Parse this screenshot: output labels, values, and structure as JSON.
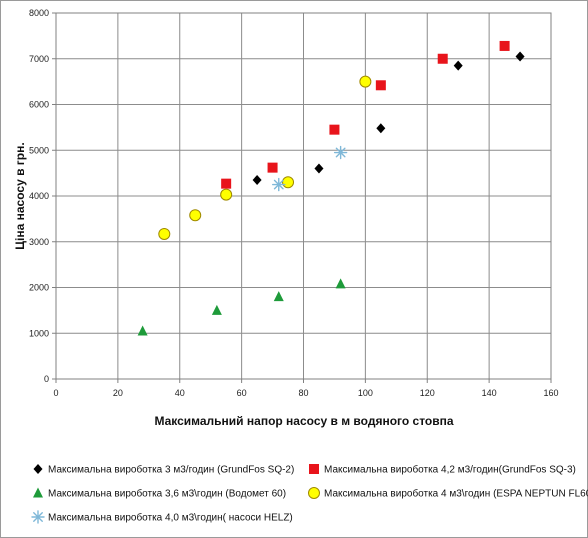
{
  "chart_data": {
    "type": "scatter",
    "title": "",
    "xlabel": "Максимальний напор насосу в м водяного стовпа",
    "ylabel": "Ціна насосу  в грн.",
    "xlim": [
      0,
      160
    ],
    "ylim": [
      0,
      8000
    ],
    "x_ticks": [
      "0",
      "20",
      "40",
      "60",
      "80",
      "100",
      "120",
      "140",
      "160"
    ],
    "y_ticks": [
      "0",
      "1000",
      "2000",
      "3000",
      "4000",
      "5000",
      "6000",
      "7000",
      "8000"
    ],
    "grid": true,
    "legend_position": "bottom",
    "series": [
      {
        "name": "Максимальна вироботка 3 м3/годин (GrundFos SQ-2)",
        "marker": "diamond",
        "color": "#000000",
        "points": [
          [
            65,
            4350
          ],
          [
            85,
            4600
          ],
          [
            105,
            5480
          ],
          [
            130,
            6850
          ],
          [
            150,
            7050
          ]
        ]
      },
      {
        "name": "Максимальна вироботка 4,2 м3/годин(GrundFos SQ-3)",
        "marker": "square",
        "color": "#e8141b",
        "points": [
          [
            55,
            4270
          ],
          [
            70,
            4620
          ],
          [
            90,
            5450
          ],
          [
            105,
            6420
          ],
          [
            125,
            7000
          ],
          [
            145,
            7280
          ]
        ]
      },
      {
        "name": "Максимальна вироботка 3,6 м3\\годин (Водомет 60)",
        "marker": "triangle",
        "color": "#1e9b3a",
        "points": [
          [
            28,
            1050
          ],
          [
            52,
            1500
          ],
          [
            72,
            1800
          ],
          [
            92,
            2080
          ]
        ]
      },
      {
        "name": "Максимальна вироботка 4 м3\\годин (ESPA NEPTUN FL60)",
        "marker": "circle",
        "color": "#ffff00",
        "stroke": "#a08a00",
        "points": [
          [
            35,
            3170
          ],
          [
            45,
            3580
          ],
          [
            55,
            4030
          ],
          [
            75,
            4300
          ],
          [
            100,
            6500
          ]
        ]
      },
      {
        "name": "Максимальна вироботка 4,0 м3\\годин( насоси HELZ)",
        "marker": "asterisk",
        "color": "#7fb8d8",
        "points": [
          [
            72,
            4250
          ],
          [
            92,
            4950
          ]
        ]
      }
    ]
  }
}
